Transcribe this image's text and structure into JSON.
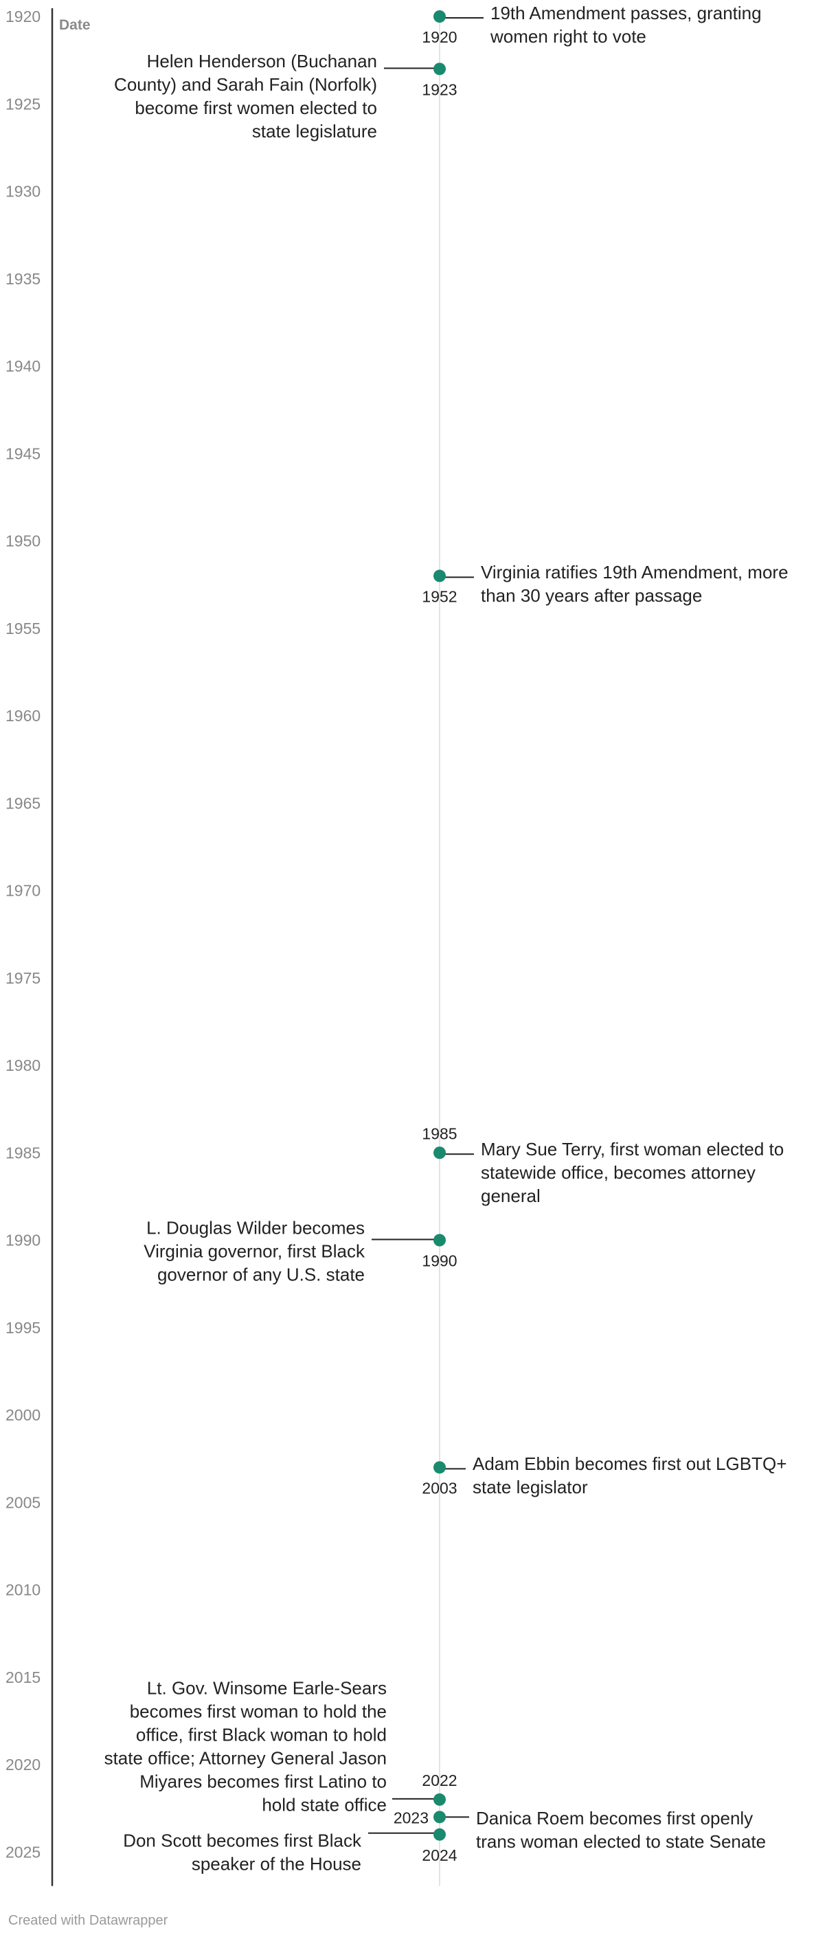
{
  "chart_data": {
    "type": "timeline",
    "ylabel": "Date",
    "ylim": [
      1920,
      2026
    ],
    "yticks": [
      1920,
      1925,
      1930,
      1935,
      1940,
      1945,
      1950,
      1955,
      1960,
      1965,
      1970,
      1975,
      1980,
      1985,
      1990,
      1995,
      2000,
      2005,
      2010,
      2015,
      2020,
      2025
    ],
    "colors": {
      "point": "#1a8a6e",
      "axis": "#333333",
      "centerline": "#e3e3e3",
      "tick": "#888888",
      "text": "#222222"
    },
    "events": [
      {
        "year": 1920,
        "year_label": "1920",
        "year_pos": "below",
        "side": "right",
        "lines": [
          "19th Amendment passes, granting",
          "women right to vote"
        ]
      },
      {
        "year": 1923,
        "year_label": "1923",
        "year_pos": "below",
        "side": "left",
        "lines": [
          "Helen Henderson (Buchanan",
          "County) and Sarah Fain (Norfolk)",
          "become first women elected to",
          "state legislature"
        ]
      },
      {
        "year": 1952,
        "year_label": "1952",
        "year_pos": "below",
        "side": "right",
        "lines": [
          "Virginia ratifies 19th Amendment, more",
          "than 30 years after passage"
        ]
      },
      {
        "year": 1985,
        "year_label": "1985",
        "year_pos": "above",
        "side": "right",
        "lines": [
          "Mary Sue Terry, first woman elected to",
          "statewide office, becomes attorney",
          "general"
        ]
      },
      {
        "year": 1990,
        "year_label": "1990",
        "year_pos": "below",
        "side": "left",
        "lines": [
          "L. Douglas Wilder becomes",
          "Virginia governor, first Black",
          "governor of any U.S. state"
        ]
      },
      {
        "year": 2003,
        "year_label": "2003",
        "year_pos": "below",
        "side": "right",
        "lines": [
          "Adam Ebbin becomes first out LGBTQ+",
          "state legislator"
        ]
      },
      {
        "year": 2022,
        "year_label": "2022",
        "year_pos": "above",
        "side": "left",
        "lines": [
          "Lt. Gov. Winsome Earle-Sears",
          "becomes first woman to hold the",
          "office, first Black woman to hold",
          "state office; Attorney General Jason",
          "Miyares becomes first Latino to",
          "hold state office"
        ]
      },
      {
        "year": 2023,
        "year_label": "2023",
        "year_pos": "left",
        "side": "right",
        "lines": [
          "Danica Roem becomes first openly",
          "trans woman elected to state Senate"
        ]
      },
      {
        "year": 2024,
        "year_label": "2024",
        "year_pos": "below",
        "side": "left",
        "lines": [
          "Don Scott becomes first Black",
          "speaker of the House"
        ]
      }
    ]
  },
  "footer": {
    "credit": "Created with Datawrapper"
  }
}
